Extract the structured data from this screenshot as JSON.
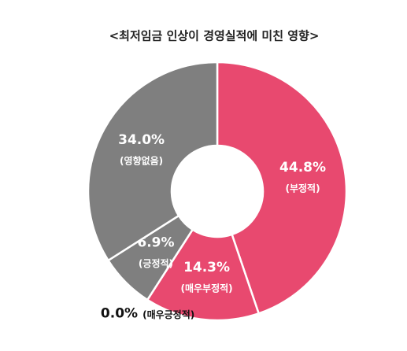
{
  "chart_data": {
    "type": "donut",
    "title": "<최저임금 인상이 경영실적에 미친 영향>",
    "categories": [
      "(부정적)",
      "(매우부정적)",
      "(매우긍정적)",
      "(긍정적)",
      "(영향없음)"
    ],
    "values": [
      44.8,
      14.3,
      0.0,
      6.9,
      34.0
    ],
    "value_labels": [
      "44.8%",
      "14.3%",
      "0.0%",
      "6.9%",
      "34.0%"
    ],
    "colors": [
      "#e8496f",
      "#e8496f",
      "#7f7f7f",
      "#7f7f7f",
      "#7f7f7f"
    ]
  }
}
